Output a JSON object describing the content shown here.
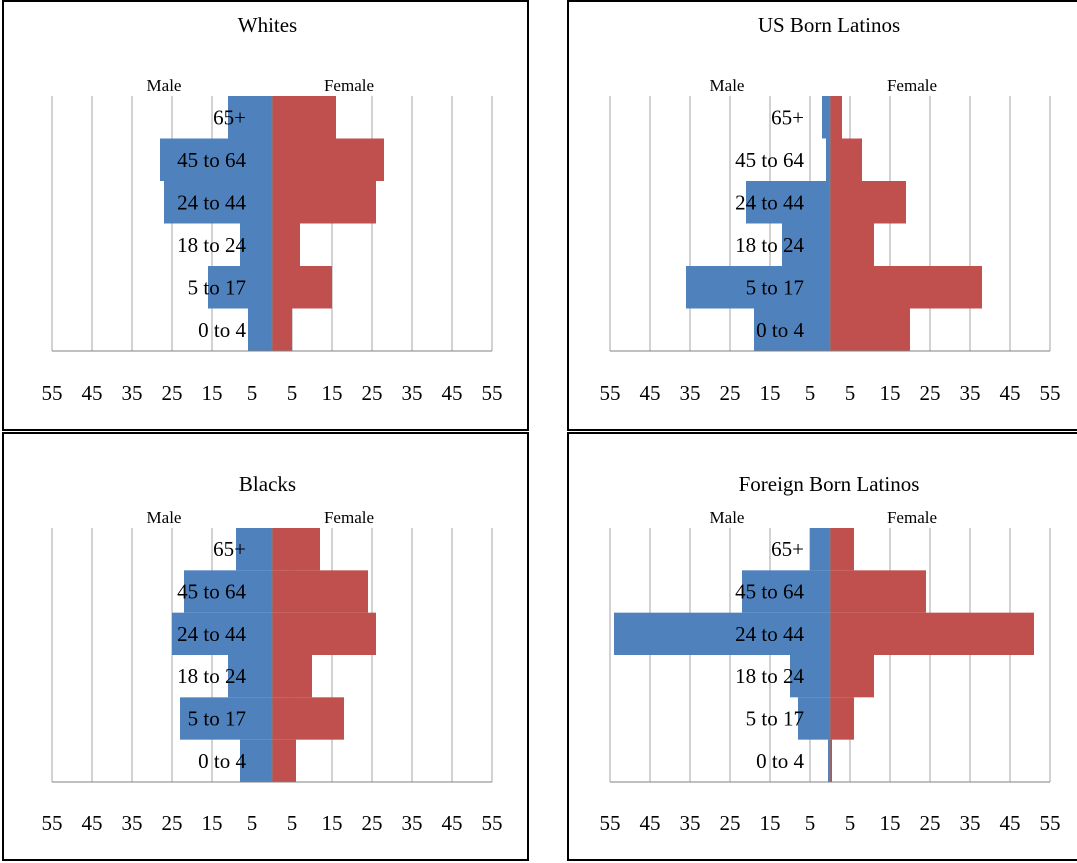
{
  "chart_data": [
    {
      "type": "bar",
      "orientation": "horizontal",
      "title": "Whites",
      "side_labels": {
        "left": "Male",
        "right": "Female"
      },
      "categories": [
        "0 to 4",
        "5 to 17",
        "18 to 24",
        "24 to 44",
        "45 to 64",
        "65+"
      ],
      "series": [
        {
          "name": "Male",
          "values": [
            6,
            16,
            8,
            27,
            28,
            11
          ]
        },
        {
          "name": "Female",
          "values": [
            5,
            15,
            7,
            26,
            28,
            16
          ]
        }
      ],
      "x_tick_labels": [
        "55",
        "45",
        "35",
        "25",
        "15",
        "5",
        "5",
        "15",
        "25",
        "35",
        "45",
        "55"
      ],
      "xlim": [
        -55,
        55
      ],
      "grid": true,
      "colors": {
        "male": "#4f81bd",
        "female": "#c0504d"
      }
    },
    {
      "type": "bar",
      "orientation": "horizontal",
      "title": "US Born Latinos",
      "side_labels": {
        "left": "Male",
        "right": "Female"
      },
      "categories": [
        "0 to 4",
        "5 to 17",
        "18 to 24",
        "24 to 44",
        "45 to 64",
        "65+"
      ],
      "series": [
        {
          "name": "Male",
          "values": [
            19,
            36,
            12,
            21,
            1,
            2
          ]
        },
        {
          "name": "Female",
          "values": [
            20,
            38,
            11,
            19,
            8,
            3
          ]
        }
      ],
      "x_tick_labels": [
        "55",
        "45",
        "35",
        "25",
        "15",
        "5",
        "5",
        "15",
        "25",
        "35",
        "45",
        "55"
      ],
      "xlim": [
        -55,
        55
      ],
      "grid": true,
      "colors": {
        "male": "#4f81bd",
        "female": "#c0504d"
      }
    },
    {
      "type": "bar",
      "orientation": "horizontal",
      "title": "Blacks",
      "side_labels": {
        "left": "Male",
        "right": "Female"
      },
      "categories": [
        "0 to 4",
        "5 to 17",
        "18 to 24",
        "24 to 44",
        "45 to 64",
        "65+"
      ],
      "series": [
        {
          "name": "Male",
          "values": [
            8,
            23,
            11,
            25,
            22,
            9
          ]
        },
        {
          "name": "Female",
          "values": [
            6,
            18,
            10,
            26,
            24,
            12
          ]
        }
      ],
      "x_tick_labels": [
        "55",
        "45",
        "35",
        "25",
        "15",
        "5",
        "5",
        "15",
        "25",
        "35",
        "45",
        "55"
      ],
      "xlim": [
        -55,
        55
      ],
      "grid": true,
      "colors": {
        "male": "#4f81bd",
        "female": "#c0504d"
      }
    },
    {
      "type": "bar",
      "orientation": "horizontal",
      "title": "Foreign Born Latinos",
      "side_labels": {
        "left": "Male",
        "right": "Female"
      },
      "categories": [
        "0 to 4",
        "5 to 17",
        "18 to 24",
        "24 to 44",
        "45 to 64",
        "65+"
      ],
      "series": [
        {
          "name": "Male",
          "values": [
            0.5,
            8,
            10,
            54,
            22,
            5
          ]
        },
        {
          "name": "Female",
          "values": [
            0.5,
            6,
            11,
            51,
            24,
            6
          ]
        }
      ],
      "x_tick_labels": [
        "55",
        "45",
        "35",
        "25",
        "15",
        "5",
        "5",
        "15",
        "25",
        "35",
        "45",
        "55"
      ],
      "xlim": [
        -55,
        55
      ],
      "grid": true,
      "colors": {
        "male": "#4f81bd",
        "female": "#c0504d"
      }
    }
  ]
}
